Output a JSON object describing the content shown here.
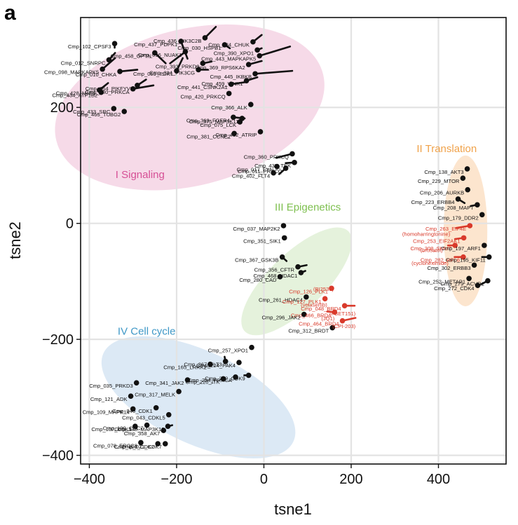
{
  "panel_letter": "a",
  "chart_data": {
    "type": "scatter",
    "xlabel": "tsne1",
    "ylabel": "tsne2",
    "xlim": [
      -420,
      555
    ],
    "ylim": [
      -415,
      355
    ],
    "xticks": [
      -400,
      -200,
      0,
      200,
      400
    ],
    "yticks": [
      -400,
      -200,
      0,
      200
    ],
    "grid": true,
    "colors": {
      "point": "#111111",
      "highlight": "#d93a2b"
    },
    "clusters": [
      {
        "label": "I Signaling",
        "color": "#d64f95",
        "fill": "#f4d3e4",
        "label_at": [
          -340,
          78
        ],
        "ellipse": {
          "cx": -170,
          "cy": 200,
          "rx": 315,
          "ry": 135,
          "rot": -14
        }
      },
      {
        "label": "II Translation",
        "color": "#f0a24a",
        "fill": "#fbe1c6",
        "label_at": [
          350,
          123
        ],
        "ellipse": {
          "cx": 462,
          "cy": -13,
          "rx": 50,
          "ry": 130,
          "rot": 0
        }
      },
      {
        "label": "III Epigenetics",
        "color": "#7dbf4e",
        "fill": "#e0f0d6",
        "label_at": [
          25,
          22
        ],
        "ellipse": {
          "cx": 75,
          "cy": -100,
          "rx": 165,
          "ry": 48,
          "rot": -44
        }
      },
      {
        "label": "IV Cell cycle",
        "color": "#3f98c7",
        "fill": "#d6e5f3",
        "label_at": [
          -335,
          -192
        ],
        "ellipse": {
          "cx": -150,
          "cy": -300,
          "rx": 240,
          "ry": 80,
          "rot": 25
        }
      }
    ],
    "points": [
      {
        "label": "Cmp_102_CPSF3",
        "x": -342,
        "y": 310,
        "to": [
          -342,
          303
        ],
        "color": "black"
      },
      {
        "label": "Cmp_012_SNRPC",
        "x": -355,
        "y": 282,
        "to": [
          -341,
          294
        ],
        "color": "black"
      },
      {
        "label": "Cmp_098_MAPKAPK5",
        "x": -370,
        "y": 266,
        "to": [
          -341,
          285
        ],
        "color": "black"
      },
      {
        "label": "Cmp_010_CHKA",
        "x": -330,
        "y": 262,
        "to": [
          -290,
          265
        ],
        "color": "black"
      },
      {
        "label": "Cmp_428_NAE1",
        "x": -377,
        "y": 230,
        "to": [
          -357,
          242
        ],
        "color": "black"
      },
      {
        "label": "Cmp_064_PIKFYVE",
        "x": -290,
        "y": 238,
        "to": [
          -270,
          248
        ],
        "color": "black"
      },
      {
        "label": "Cmp_434_ATP1B2",
        "x": -373,
        "y": 226,
        "color": "black"
      },
      {
        "label": "Cmp_380_PRKCA",
        "x": -300,
        "y": 232,
        "to": [
          -253,
          238
        ],
        "color": "black"
      },
      {
        "label": "Cmp_433_SRC",
        "x": -344,
        "y": 198,
        "color": "black"
      },
      {
        "label": "Cmp_465_TUBG2",
        "x": -320,
        "y": 193,
        "color": "black"
      },
      {
        "label": "Cmp_437_PDPK1",
        "x": -190,
        "y": 314,
        "to": [
          -175,
          284
        ],
        "color": "black"
      },
      {
        "label": "Cmp_096_NUAK1",
        "x": -180,
        "y": 296,
        "to": [
          -215,
          276
        ],
        "color": "black"
      },
      {
        "label": "Cmp_458_OPTN",
        "x": -250,
        "y": 294,
        "to": [
          -225,
          276
        ],
        "color": "black"
      },
      {
        "label": "Cmp_059_PDK1",
        "x": -200,
        "y": 263,
        "to": [
          -186,
          285
        ],
        "color": "black"
      },
      {
        "label": "Cmp_393_PRKD3",
        "x": -140,
        "y": 276,
        "to": [
          -120,
          279
        ],
        "color": "black"
      },
      {
        "label": "Cmp_436_PIK3C2B",
        "x": -135,
        "y": 320,
        "to": [
          -110,
          339
        ],
        "color": "black"
      },
      {
        "label": "Cmp_030_HSPB1",
        "x": -90,
        "y": 308,
        "to": [
          -78,
          302
        ],
        "color": "black"
      },
      {
        "label": "Cmp_334_PIK3CG",
        "x": -150,
        "y": 265,
        "to": [
          -128,
          265
        ],
        "color": "black"
      },
      {
        "label": "Cmp_034_CHUK",
        "x": -25,
        "y": 313,
        "to": [
          -5,
          325
        ],
        "color": "black"
      },
      {
        "label": "Cmp_390_XPO1",
        "x": -15,
        "y": 299,
        "to": [
          -5,
          302
        ],
        "color": "black"
      },
      {
        "label": "Cmp_443_MAPKAPK5",
        "x": -10,
        "y": 289,
        "to": [
          60,
          305
        ],
        "color": "black"
      },
      {
        "label": "Cmp_369_RPS6KA2",
        "x": -35,
        "y": 274,
        "to": [
          -5,
          280
        ],
        "color": "black"
      },
      {
        "label": "Cmp_445_IKBKB",
        "x": -20,
        "y": 258,
        "to": [
          65,
          263
        ],
        "color": "black"
      },
      {
        "label": "Cmp_441_CSNK2A1",
        "x": -75,
        "y": 240,
        "to": [
          -38,
          244
        ],
        "color": "black"
      },
      {
        "label": "Cmp_459_WNK1",
        "x": -40,
        "y": 246,
        "to": [
          -15,
          252
        ],
        "color": "black"
      },
      {
        "label": "Cmp_420_PRKCQ",
        "x": -80,
        "y": 224,
        "color": "black"
      },
      {
        "label": "Cmp_366_ALK",
        "x": -30,
        "y": 205,
        "color": "black"
      },
      {
        "label": "Cmp_363_FGFR4",
        "x": -70,
        "y": 183,
        "to": [
          -44,
          181
        ],
        "color": "black"
      },
      {
        "label": "Cmp_375_MAP3K11",
        "x": -50,
        "y": 181,
        "color": "black"
      },
      {
        "label": "Cmp_075_LCK",
        "x": -55,
        "y": 175,
        "color": "black"
      },
      {
        "label": "Cmp_452_ATRIP",
        "x": -8,
        "y": 158,
        "color": "black"
      },
      {
        "label": "Cmp_381_CCNE2",
        "x": -68,
        "y": 155,
        "color": "black"
      },
      {
        "label": "Cmp_360_PRKCQ",
        "x": 65,
        "y": 120,
        "to": [
          28,
          113
        ],
        "color": "black"
      },
      {
        "label": "Cmp_435_TEK",
        "x": 70,
        "y": 105,
        "to": [
          50,
          104
        ],
        "color": "black"
      },
      {
        "label": "Cmp_017_FYN",
        "x": 30,
        "y": 98,
        "to": [
          30,
          95
        ],
        "color": "black"
      },
      {
        "label": "Cmp_011_PRKCQ",
        "x": 50,
        "y": 95,
        "to": [
          35,
          85
        ],
        "color": "black"
      },
      {
        "label": "Cmp_402_FLT4",
        "x": 22,
        "y": 87,
        "color": "black"
      },
      {
        "label": "Cmp_138_AKT3",
        "x": 466,
        "y": 94,
        "color": "black"
      },
      {
        "label": "Cmp_229_MTOR",
        "x": 456,
        "y": 78,
        "color": "black"
      },
      {
        "label": "Cmp_206_AURKB",
        "x": 467,
        "y": 58,
        "color": "black"
      },
      {
        "label": "Cmp_223_ERBB4",
        "x": 445,
        "y": 42,
        "to": [
          460,
          35
        ],
        "color": "black"
      },
      {
        "label": "Cmp_208_MAPT",
        "x": 489,
        "y": 32,
        "to": [
          474,
          30
        ],
        "color": "black"
      },
      {
        "label": "Cmp_179_DDR2",
        "x": 500,
        "y": 15,
        "color": "black"
      },
      {
        "label": "Cmp_263_EIF4E",
        "x": 472,
        "y": -4,
        "to": [
          440,
          -8
        ],
        "color": "red"
      },
      {
        "label": "Cmp_253_EIF2AK1",
        "x": 458,
        "y": -25,
        "to": [
          438,
          -27
        ],
        "color": "red"
      },
      {
        "label": "Cmp_308_SMUT",
        "x": 438,
        "y": -38,
        "to": [
          422,
          -38
        ],
        "color": "red"
      },
      {
        "label": "Cmp_197_ARF1",
        "x": 505,
        "y": -38,
        "color": "black"
      },
      {
        "label": "Cmp_282_RPL6",
        "x": 457,
        "y": -58,
        "to": [
          437,
          -58
        ],
        "color": "red"
      },
      {
        "label": "Cmp_195_KIF11",
        "x": 516,
        "y": -58,
        "to": [
          500,
          -58
        ],
        "color": "black"
      },
      {
        "label": "Cmp_302_ERBB3",
        "x": 482,
        "y": -72,
        "to": [
          480,
          -72
        ],
        "color": "black"
      },
      {
        "label": "Cmp_252_METAP1",
        "x": 470,
        "y": -95,
        "color": "black"
      },
      {
        "label": "Cmp_279_ACVR1",
        "x": 513,
        "y": -99,
        "to": [
          498,
          -105
        ],
        "color": "black"
      },
      {
        "label": "Cmp_272_CDK4",
        "x": 490,
        "y": -107,
        "color": "black"
      },
      {
        "label": "Cmp_037_MAP2K2",
        "x": 45,
        "y": -4,
        "color": "black"
      },
      {
        "label": "Cmp_351_SIK1",
        "x": 47,
        "y": -25,
        "color": "black"
      },
      {
        "label": "Cmp_367_GSK3B",
        "x": 42,
        "y": -58,
        "to": [
          52,
          -65
        ],
        "color": "black"
      },
      {
        "label": "Cmp_356_CFTR",
        "x": 78,
        "y": -75,
        "to": [
          98,
          -72
        ],
        "color": "black"
      },
      {
        "label": "Cmp_468_HDAC1",
        "x": 85,
        "y": -85,
        "to": [
          95,
          -82
        ],
        "color": "black"
      },
      {
        "label": "Cmp_280_CAD",
        "x": 37,
        "y": -92,
        "color": "black"
      },
      {
        "label": "Cmp_126_PLK1",
        "x": 155,
        "y": -112,
        "color": "red"
      },
      {
        "label": "Cmp_261_HDAC4",
        "x": 97,
        "y": -127,
        "color": "black"
      },
      {
        "label": "Cmp_127_PLK1",
        "x": 140,
        "y": -130,
        "color": "red"
      },
      {
        "label": "Cmp_048_BRD4",
        "x": 185,
        "y": -142,
        "to": [
          208,
          -142
        ],
        "color": "red"
      },
      {
        "label": "Cmp_466_BRD4",
        "x": 162,
        "y": -153,
        "to": [
          145,
          -152
        ],
        "color": "red"
      },
      {
        "label": "Cmp_296_JAK2",
        "x": 92,
        "y": -157,
        "color": "black"
      },
      {
        "label": "Cmp_464_BRD4",
        "x": 180,
        "y": -168,
        "to": [
          210,
          -163
        ],
        "color": "red"
      },
      {
        "label": "Cmp_312_BRDT",
        "x": 157,
        "y": -180,
        "color": "black"
      },
      {
        "label": "Cmp_257_XPO1",
        "x": -28,
        "y": -214,
        "color": "black"
      },
      {
        "label": "Cmp_267_FLT3",
        "x": -88,
        "y": -238,
        "to": [
          -90,
          -230
        ],
        "color": "black"
      },
      {
        "label": "Cmp_224_PAK4",
        "x": -57,
        "y": -240,
        "color": "black"
      },
      {
        "label": "Cmp_165_LRRK2",
        "x": -123,
        "y": -243,
        "color": "black"
      },
      {
        "label": "Cmp_202_CDK9",
        "x": -35,
        "y": -262,
        "to": [
          -45,
          -262
        ],
        "color": "black"
      },
      {
        "label": "Cmp_341_JAK2",
        "x": -175,
        "y": -270,
        "color": "black"
      },
      {
        "label": "Cmp_220_ITK",
        "x": -93,
        "y": -268,
        "color": "black"
      },
      {
        "label": "Cmp_254_PRKCA",
        "x": -65,
        "y": -265,
        "color": "black"
      },
      {
        "label": "Cmp_035_PRKD3",
        "x": -292,
        "y": -275,
        "color": "black"
      },
      {
        "label": "Cmp_317_MELK",
        "x": -195,
        "y": -290,
        "color": "black"
      },
      {
        "label": "Cmp_121_ADK",
        "x": -305,
        "y": -298,
        "color": "black"
      },
      {
        "label": "Cmp_040_CDK1",
        "x": -247,
        "y": -318,
        "color": "black"
      },
      {
        "label": "Cmp_109_MAPK14",
        "x": -300,
        "y": -320,
        "color": "black"
      },
      {
        "label": "Cmp_043_CDKL5",
        "x": -218,
        "y": -330,
        "color": "black"
      },
      {
        "label": "Cmp_100_CDC7",
        "x": -268,
        "y": -348,
        "color": "black"
      },
      {
        "label": "Cmp_338_MAP3K12",
        "x": -220,
        "y": -350,
        "to": [
          -210,
          -348
        ],
        "color": "black"
      },
      {
        "label": "Cmp_107_CDK1",
        "x": -295,
        "y": -350,
        "color": "black"
      },
      {
        "label": "Cmp_358_AK7",
        "x": -230,
        "y": -357,
        "color": "black"
      },
      {
        "label": "Cmp_078_ERCC3",
        "x": -282,
        "y": -378,
        "color": "black"
      },
      {
        "label": "Cmp_106_CDK2",
        "x": -243,
        "y": -380,
        "color": "black"
      },
      {
        "label": "Cmp_021_CDK7",
        "x": -226,
        "y": -380,
        "color": "black"
      }
    ],
    "annotations": [
      {
        "text": "(homoharringtonine)",
        "x": 427,
        "y": -13,
        "color": "red"
      },
      {
        "text": "(brusatol)",
        "x": 410,
        "y": -41,
        "color": "red"
      },
      {
        "text": "(cycloheximide)",
        "x": 423,
        "y": -63,
        "color": "red"
      },
      {
        "text": "(BI2536)",
        "x": 160,
        "y": -108,
        "color": "red"
      },
      {
        "text": "(volasertib)",
        "x": 145,
        "y": -135,
        "color": "red"
      },
      {
        "text": "(I-BET151)",
        "x": 210,
        "y": -150,
        "color": "red"
      },
      {
        "text": "(JQ1)",
        "x": 162,
        "y": -159,
        "color": "red"
      },
      {
        "text": "(CPI-203)",
        "x": 210,
        "y": -172,
        "color": "red"
      }
    ]
  }
}
